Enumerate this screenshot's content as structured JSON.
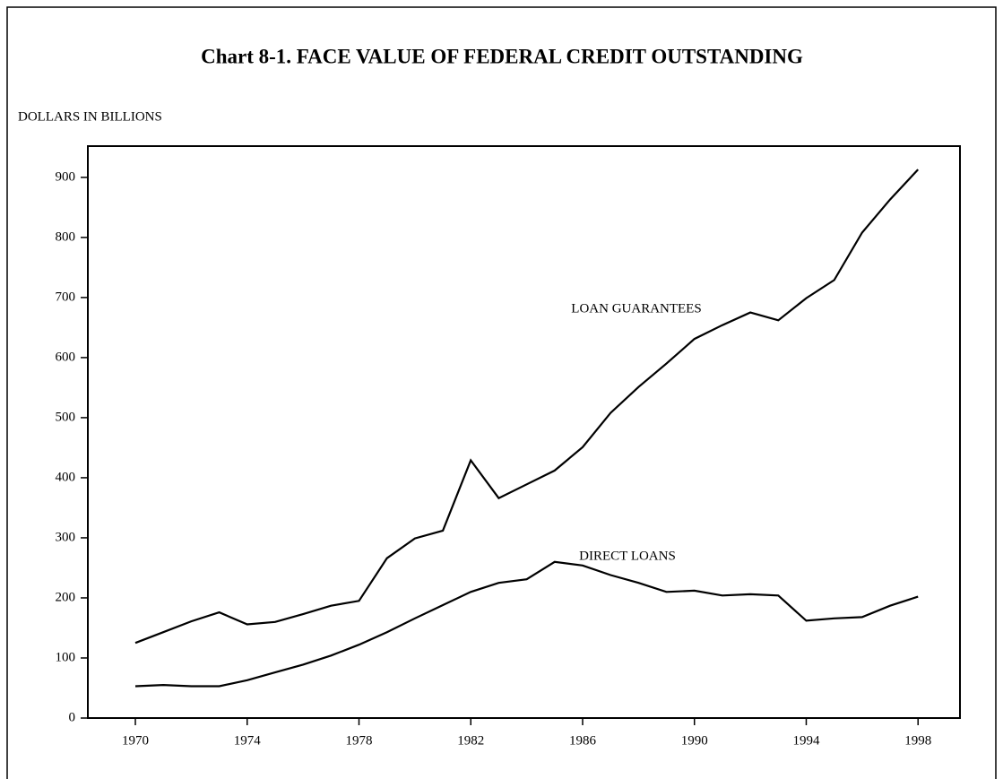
{
  "chart_data": {
    "type": "line",
    "title": "Chart 8-1. FACE VALUE OF FEDERAL CREDIT OUTSTANDING",
    "y_label": "DOLLARS IN BILLIONS",
    "x": [
      1970,
      1971,
      1972,
      1973,
      1974,
      1975,
      1976,
      1977,
      1978,
      1979,
      1980,
      1981,
      1982,
      1983,
      1984,
      1985,
      1986,
      1987,
      1988,
      1989,
      1990,
      1991,
      1992,
      1993,
      1994,
      1995,
      1996,
      1997,
      1998
    ],
    "series": [
      {
        "name": "LOAN GUARANTEES",
        "color": "#000000",
        "values": [
          125,
          143,
          161,
          176,
          156,
          160,
          173,
          187,
          195,
          266,
          299,
          312,
          429,
          366,
          389,
          412,
          451,
          508,
          551,
          590,
          631,
          654,
          675,
          662,
          699,
          729,
          808,
          863,
          913
        ]
      },
      {
        "name": "DIRECT LOANS",
        "color": "#000000",
        "values": [
          53,
          55,
          53,
          53,
          63,
          76,
          89,
          104,
          122,
          143,
          166,
          188,
          210,
          225,
          231,
          260,
          254,
          238,
          225,
          210,
          212,
          204,
          206,
          204,
          162,
          166,
          168,
          187,
          202
        ]
      }
    ],
    "xlim": [
      1968.3,
      1999.5
    ],
    "xticks": [
      1970,
      1974,
      1978,
      1982,
      1986,
      1990,
      1994,
      1998
    ],
    "ylim": [
      0,
      952
    ],
    "yticks": [
      0,
      100,
      200,
      300,
      400,
      500,
      600,
      700,
      800,
      900
    ],
    "grid": false
  }
}
